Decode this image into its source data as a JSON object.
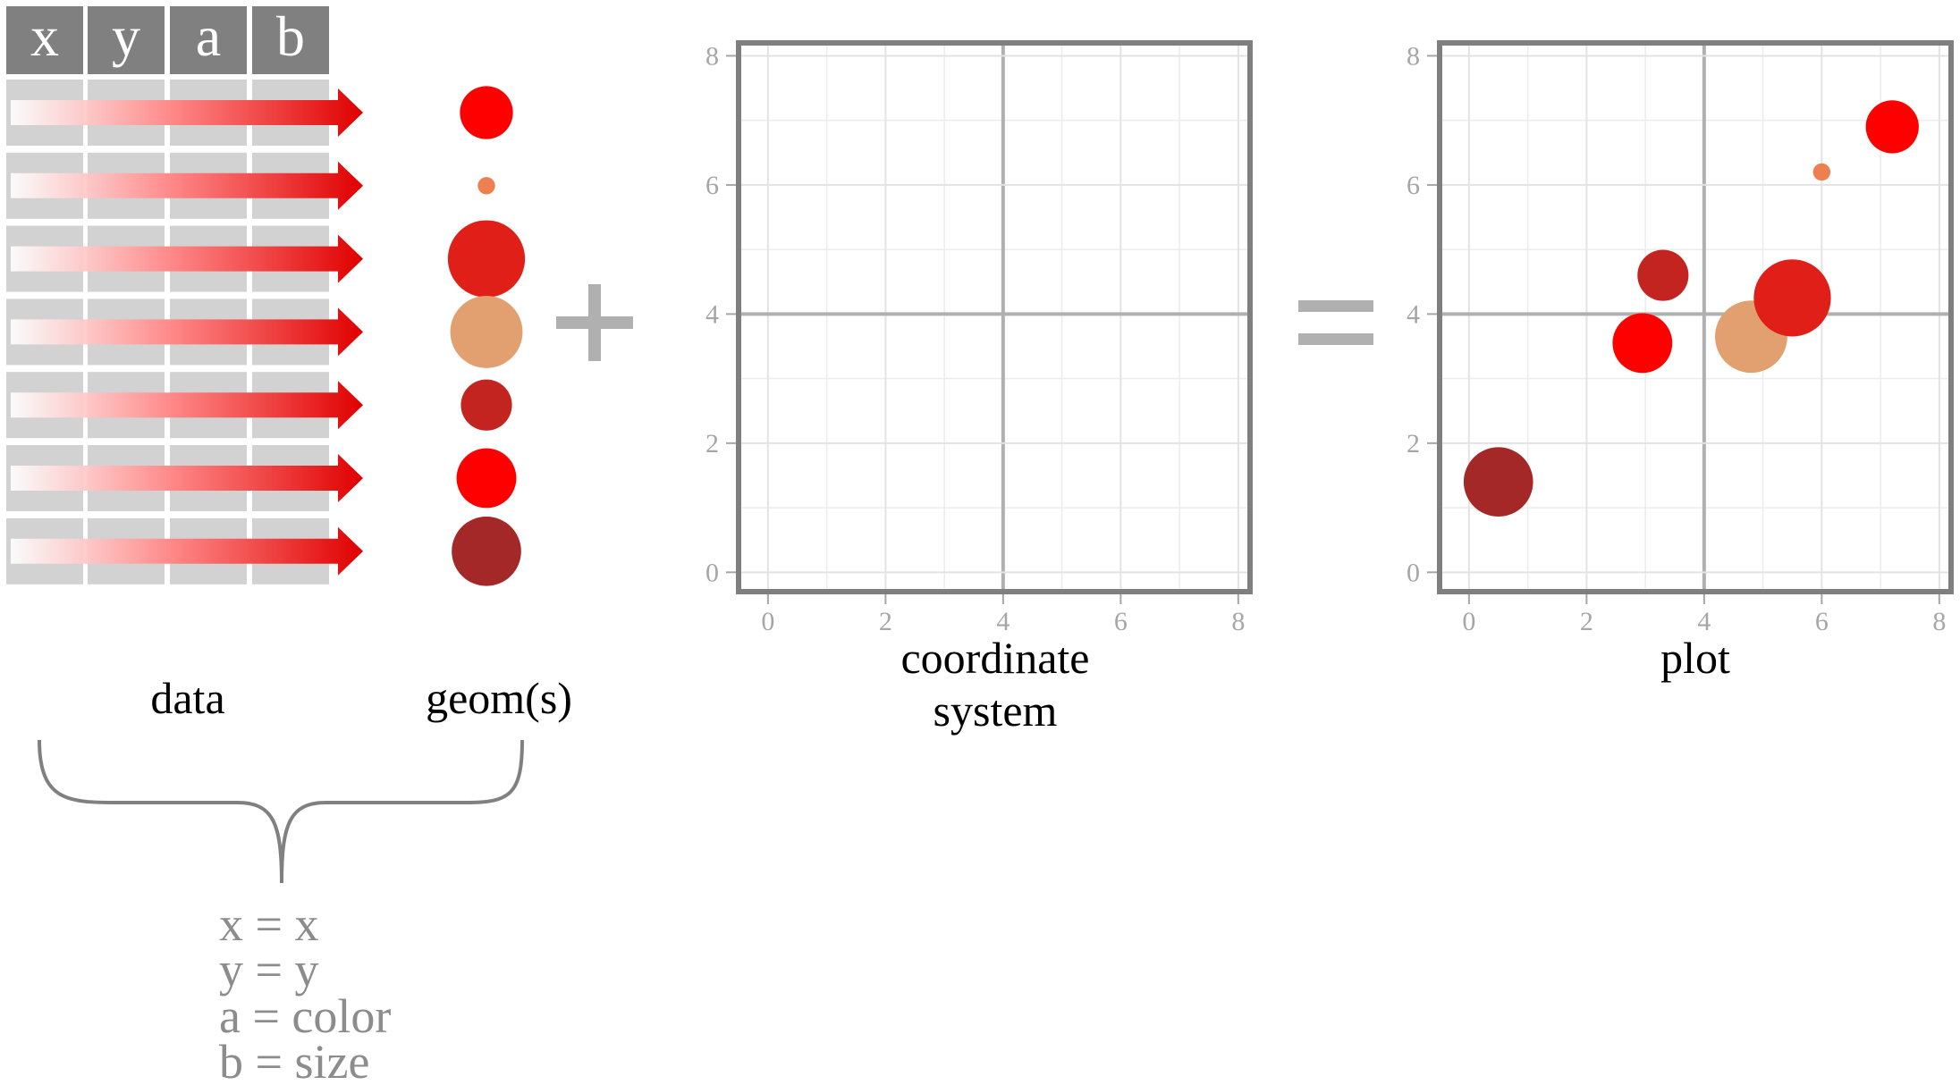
{
  "table": {
    "columns": [
      "x",
      "y",
      "a",
      "b"
    ],
    "row_count": 7
  },
  "geoms": [
    {
      "color": "#ff0000",
      "size": 0.55
    },
    {
      "color": "#ee7f50",
      "size": 0.18
    },
    {
      "color": "#df1f18",
      "size": 0.8
    },
    {
      "color": "#e2a070",
      "size": 0.75
    },
    {
      "color": "#c42420",
      "size": 0.53
    },
    {
      "color": "#ff0000",
      "size": 0.62
    },
    {
      "color": "#a42828",
      "size": 0.72
    }
  ],
  "operators": {
    "plus": "+",
    "equals": "="
  },
  "labels": {
    "data": "data",
    "geoms": "geom(s)",
    "coord_line1": "coordinate",
    "coord_line2": "system",
    "plot": "plot"
  },
  "mapping": [
    "x = x",
    "y = y",
    "a = color",
    "b = size"
  ],
  "chart_data": [
    {
      "type": "scatter",
      "title": "",
      "xlabel": "",
      "ylabel": "",
      "xlim": [
        -0.5,
        8.2
      ],
      "ylim": [
        -0.3,
        8.2
      ],
      "x_ticks": [
        0,
        2,
        4,
        6,
        8
      ],
      "y_ticks": [
        0,
        2,
        4,
        6,
        8
      ],
      "grid": true,
      "points": []
    },
    {
      "type": "scatter",
      "title": "",
      "xlabel": "",
      "ylabel": "",
      "xlim": [
        -0.5,
        8.2
      ],
      "ylim": [
        -0.3,
        8.2
      ],
      "x_ticks": [
        0,
        2,
        4,
        6,
        8
      ],
      "y_ticks": [
        0,
        2,
        4,
        6,
        8
      ],
      "grid": true,
      "points": [
        {
          "x": 0.5,
          "y": 1.4,
          "color": "#a42828",
          "size": 0.72
        },
        {
          "x": 2.95,
          "y": 3.55,
          "color": "#ff0000",
          "size": 0.62
        },
        {
          "x": 3.3,
          "y": 4.6,
          "color": "#c42420",
          "size": 0.53
        },
        {
          "x": 4.8,
          "y": 3.65,
          "color": "#e2a070",
          "size": 0.75
        },
        {
          "x": 5.5,
          "y": 4.25,
          "color": "#df1f18",
          "size": 0.8
        },
        {
          "x": 6.0,
          "y": 6.2,
          "color": "#ee7f50",
          "size": 0.18
        },
        {
          "x": 7.2,
          "y": 6.9,
          "color": "#ff0000",
          "size": 0.55
        }
      ]
    }
  ]
}
